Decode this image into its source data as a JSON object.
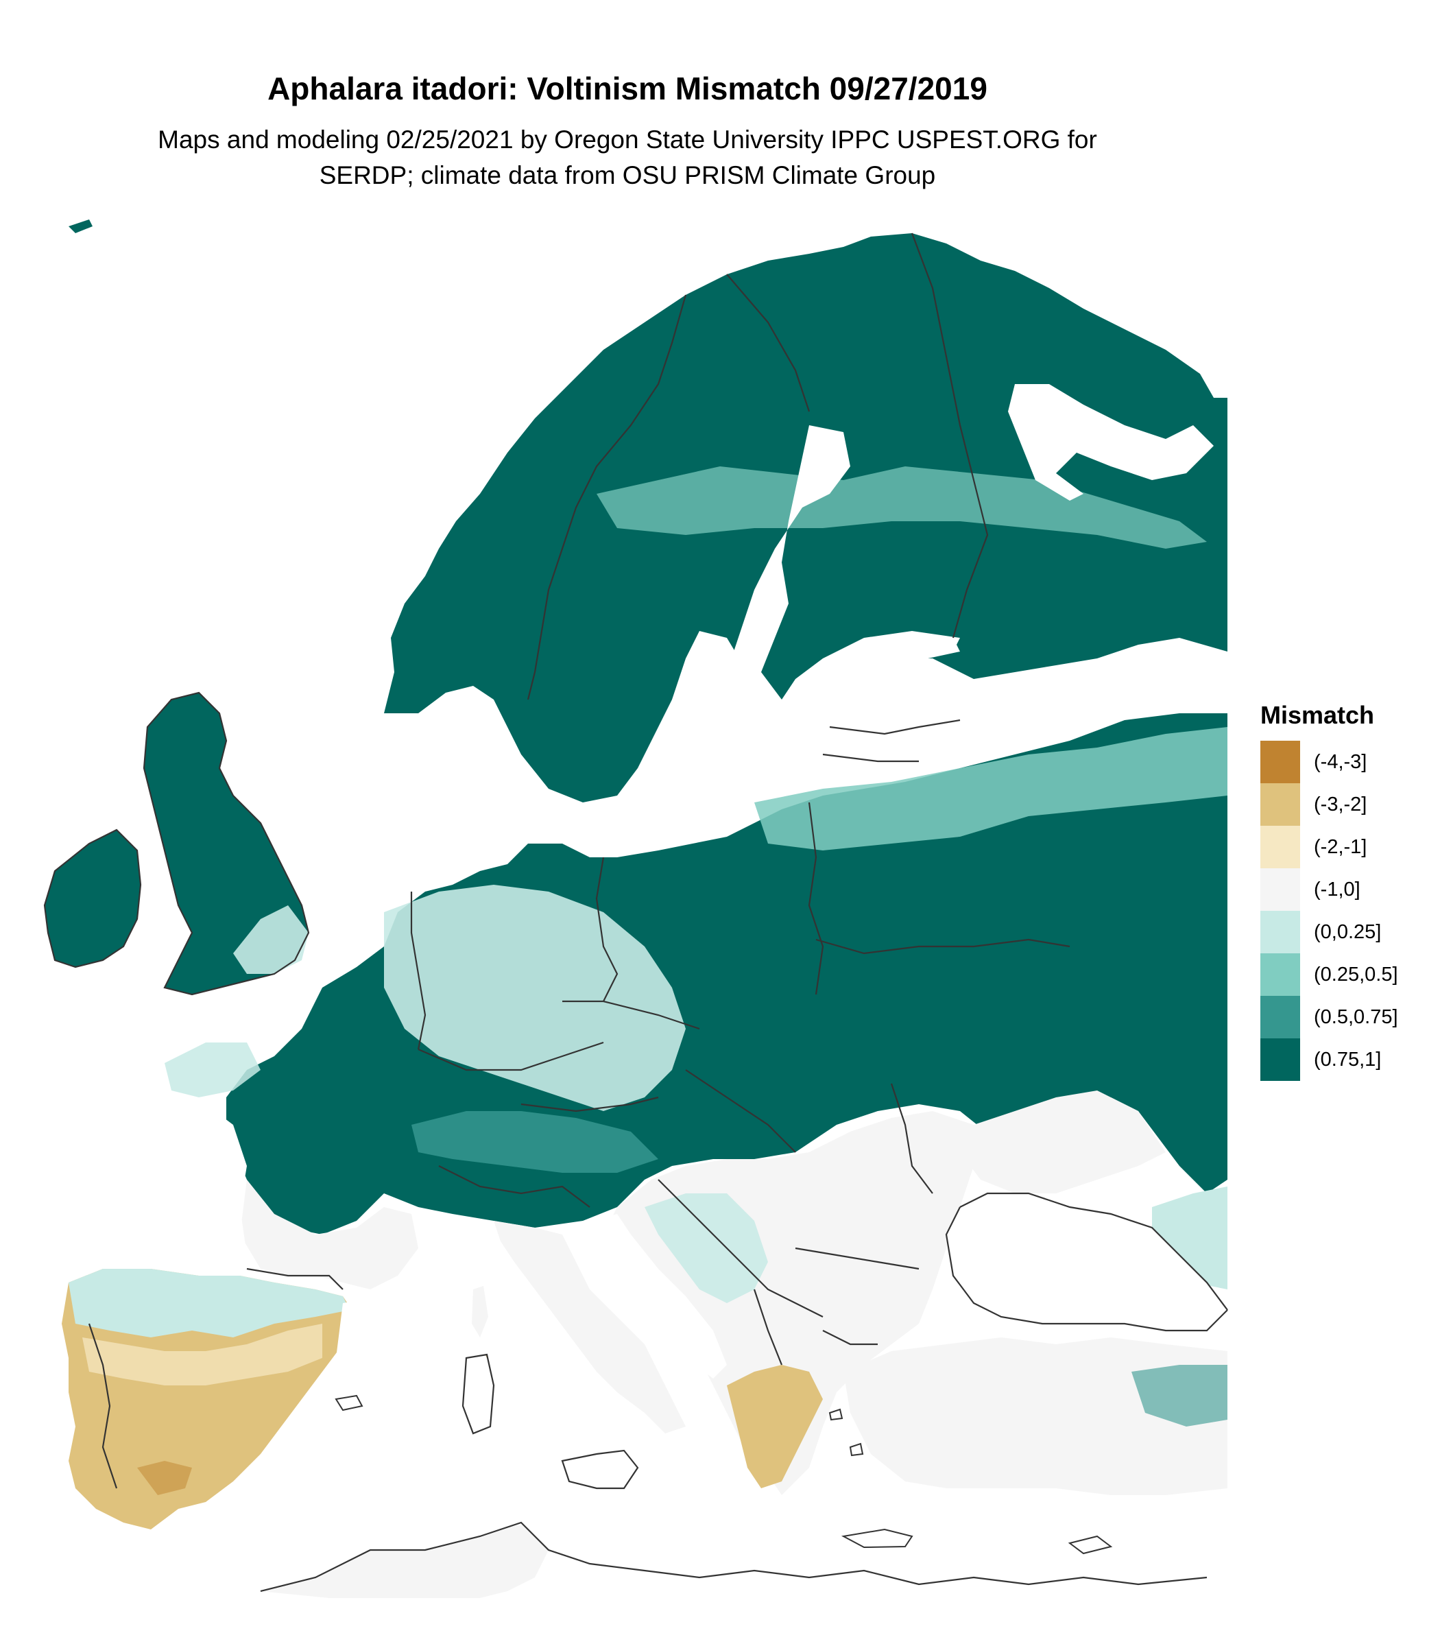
{
  "map": {
    "title": "Aphalara itadori: Voltinism Mismatch 09/27/2019",
    "subtitle_line1": "Maps and modeling 02/25/2021 by Oregon State University IPPC USPEST.ORG for",
    "subtitle_line2": "SERDP; climate data from OSU PRISM Climate Group",
    "background": "#ffffff",
    "border_color": "#333333"
  },
  "legend": {
    "title": "Mismatch",
    "items": [
      {
        "label": "(-4,-3]",
        "color": "#c08330"
      },
      {
        "label": "(-3,-2]",
        "color": "#dfc27d"
      },
      {
        "label": "(-2,-1]",
        "color": "#f6e8c3"
      },
      {
        "label": "(-1,0]",
        "color": "#f5f5f5"
      },
      {
        "label": "(0,0.25]",
        "color": "#c7eae5"
      },
      {
        "label": "(0.25,0.5]",
        "color": "#80cdc1"
      },
      {
        "label": "(0.5,0.75]",
        "color": "#35978f"
      },
      {
        "label": "(0.75,1]",
        "color": "#01665e"
      }
    ]
  }
}
